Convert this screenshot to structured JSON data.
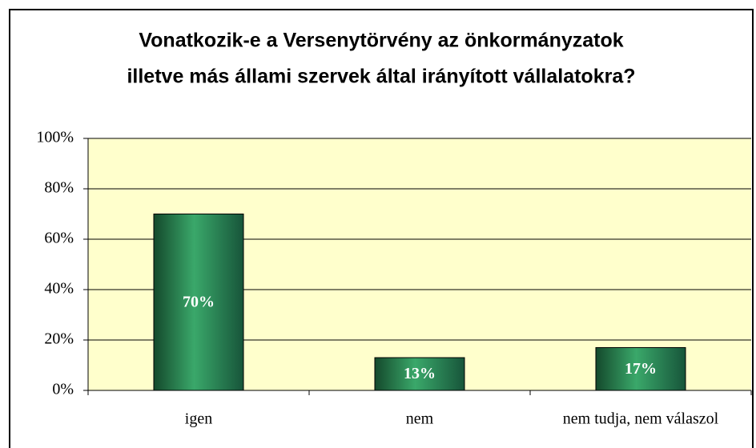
{
  "chart_data": {
    "type": "bar",
    "title": [
      "Vonatkozik-e a Versenytörvény az önkormányzatok",
      "illetve más állami szervek által irányított vállalatokra?"
    ],
    "categories": [
      "igen",
      "nem",
      "nem tudja, nem válaszol"
    ],
    "values": [
      70,
      13,
      17
    ],
    "value_labels": [
      "70%",
      "13%",
      "17%"
    ],
    "color": "#2e8b57",
    "ylim": [
      0,
      100
    ],
    "yticks": [
      {
        "value": 0,
        "label": "0%"
      },
      {
        "value": 20,
        "label": "20%"
      },
      {
        "value": 40,
        "label": "40%"
      },
      {
        "value": 60,
        "label": "60%"
      },
      {
        "value": 80,
        "label": "80%"
      },
      {
        "value": 100,
        "label": "100%"
      }
    ],
    "grid": true
  }
}
